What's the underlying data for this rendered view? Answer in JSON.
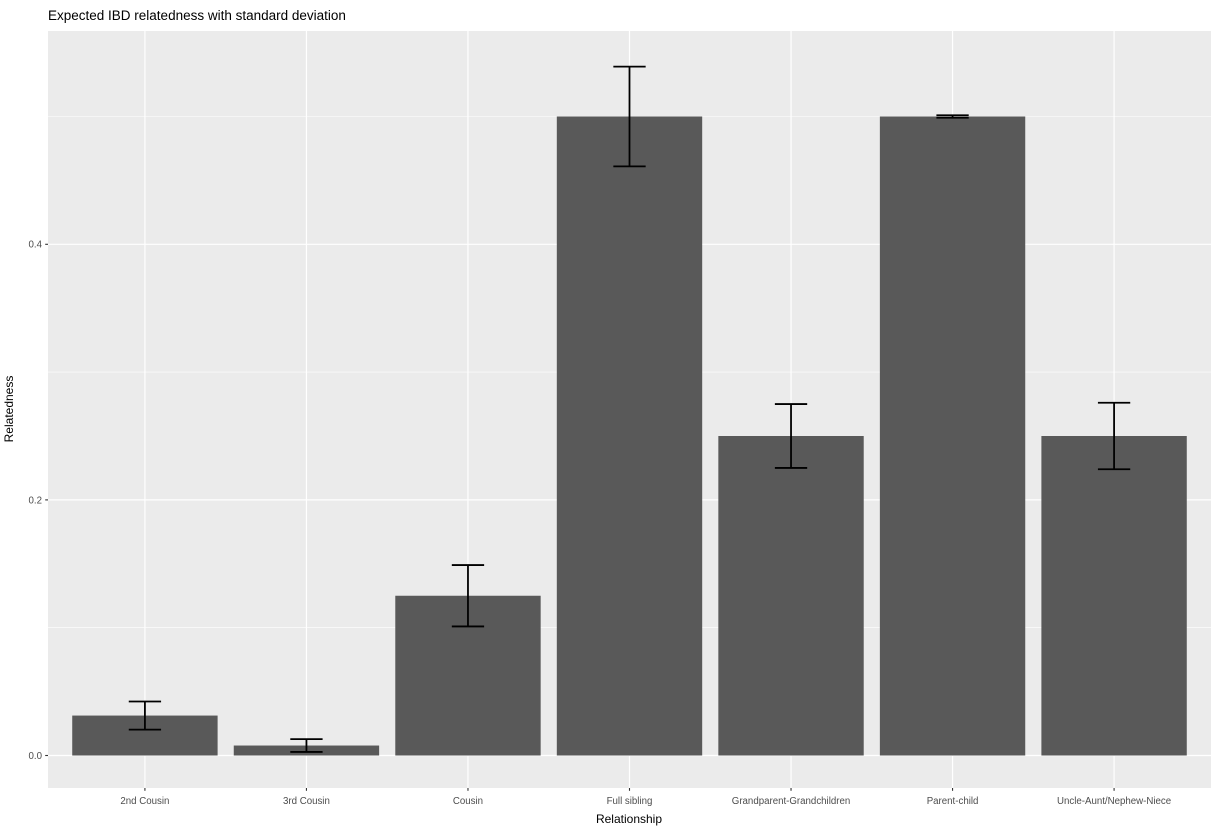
{
  "chart_data": {
    "type": "bar",
    "title": "Expected IBD relatedness with standard deviation",
    "xlabel": "Relationship",
    "ylabel": "Relatedness",
    "categories": [
      "2nd Cousin",
      "3rd Cousin",
      "Cousin",
      "Full sibling",
      "Grandparent-Grandchildren",
      "Parent-child",
      "Uncle-Aunt/Nephew-Niece"
    ],
    "values": [
      0.03125,
      0.0078,
      0.125,
      0.5,
      0.25,
      0.5,
      0.25
    ],
    "error_sd": [
      0.011,
      0.005,
      0.024,
      0.039,
      0.025,
      0.001,
      0.026
    ],
    "y_major_ticks": [
      0.0,
      0.2,
      0.4
    ],
    "y_tick_labels": [
      "0.0",
      "0.2",
      "0.4"
    ],
    "y_minor_ticks": [
      0.1,
      0.3,
      0.5
    ],
    "ylim": [
      -0.027,
      0.566
    ],
    "grid": true,
    "legend": "none",
    "bar_relative_width": 0.9,
    "errorbar_cap_relative_width": 0.2,
    "colors": {
      "bar_fill": "#595959",
      "panel_background": "#EBEBEB",
      "gridline": "#FFFFFF",
      "error_bar": "#000000",
      "tick_mark": "#333333",
      "tick_label": "#4D4D4D",
      "title_text": "#000000"
    }
  }
}
